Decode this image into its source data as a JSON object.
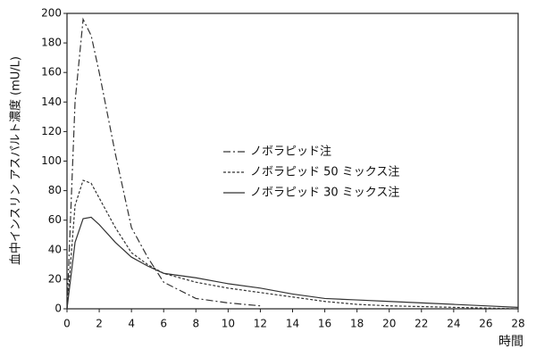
{
  "chart_data": {
    "type": "line",
    "ylabel": "血中インスリン アスパルト濃度 (mU/L)",
    "xlabel": "時間",
    "xlim": [
      0,
      28
    ],
    "xticks": [
      0,
      2,
      4,
      6,
      8,
      10,
      12,
      14,
      16,
      18,
      20,
      22,
      24,
      26,
      28
    ],
    "ylim": [
      0,
      200
    ],
    "yticks": [
      0,
      20,
      40,
      60,
      80,
      100,
      120,
      140,
      160,
      180,
      200
    ],
    "grid": false,
    "series": [
      {
        "name": "ノボラピッド注",
        "color": "#333333",
        "dash": "8 3 2 3",
        "x": [
          0,
          0.5,
          1,
          1.5,
          2,
          3,
          4,
          5,
          6,
          8,
          10,
          12
        ],
        "values": [
          0,
          140,
          196,
          185,
          160,
          105,
          55,
          35,
          18,
          7,
          4,
          2
        ]
      },
      {
        "name": "ノボラピッド 50 ミックス注",
        "color": "#333333",
        "dash": "3 2",
        "x": [
          0,
          0.5,
          1,
          1.5,
          2,
          3,
          4,
          5,
          6,
          8,
          10,
          12,
          14,
          16,
          18,
          20,
          24,
          28
        ],
        "values": [
          0,
          70,
          87,
          85,
          75,
          55,
          38,
          30,
          24,
          18,
          14,
          11,
          8,
          5,
          3,
          2,
          1,
          0
        ]
      },
      {
        "name": "ノボラピッド 30 ミックス注",
        "color": "#333333",
        "dash": "none",
        "x": [
          0,
          0.5,
          1,
          1.5,
          2,
          3,
          4,
          5,
          6,
          8,
          10,
          12,
          14,
          16,
          18,
          20,
          22,
          24,
          26,
          28
        ],
        "values": [
          0,
          45,
          61,
          62,
          57,
          45,
          35,
          29,
          24,
          21,
          17,
          14,
          10,
          7,
          6,
          5,
          4,
          3,
          2,
          1
        ]
      }
    ]
  }
}
